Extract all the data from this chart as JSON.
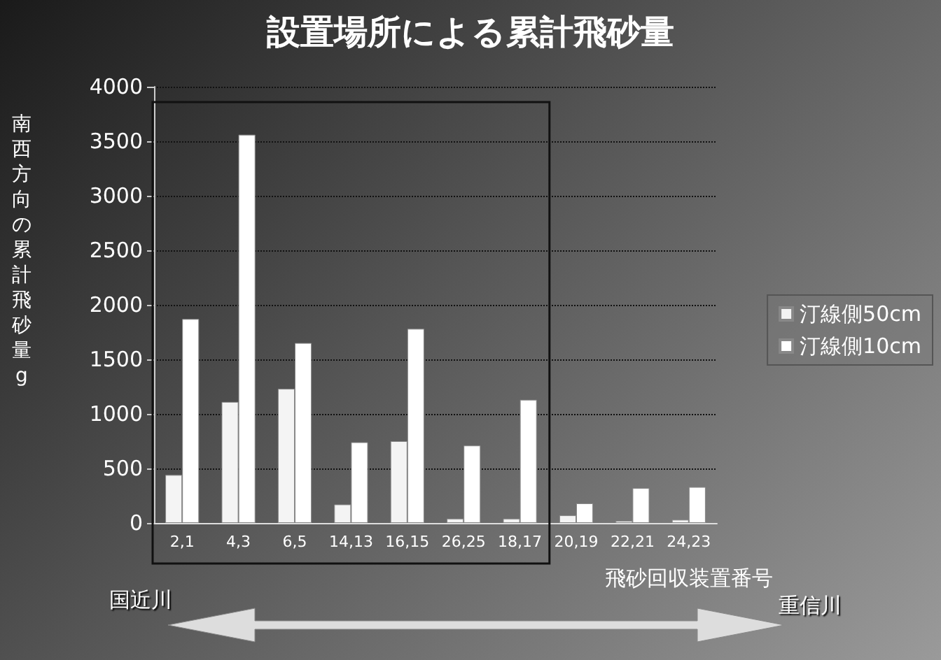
{
  "chart_data": {
    "type": "bar",
    "title": "設置場所による累計飛砂量",
    "xlabel": "飛砂回収装置番号",
    "ylabel": "南西方向の累計飛砂量 g",
    "categories": [
      "2,1",
      "4,3",
      "6,5",
      "14,13",
      "16,15",
      "26,25",
      "18,17",
      "20,19",
      "22,21",
      "24,23"
    ],
    "series": [
      {
        "name": "汀線側50cm",
        "color": "#f4f4f4",
        "values": [
          440,
          1110,
          1230,
          170,
          750,
          40,
          40,
          70,
          20,
          30
        ]
      },
      {
        "name": "汀線側10cm",
        "color": "#ffffff",
        "values": [
          1870,
          3560,
          1650,
          740,
          1780,
          710,
          1130,
          180,
          320,
          330
        ]
      }
    ],
    "ylim": [
      0,
      4000
    ],
    "yticks": [
      0,
      500,
      1000,
      1500,
      2000,
      2500,
      3000,
      3500,
      4000
    ],
    "grid": "y",
    "legend": "right",
    "annotations": [
      "国近川",
      "重信川"
    ]
  }
}
